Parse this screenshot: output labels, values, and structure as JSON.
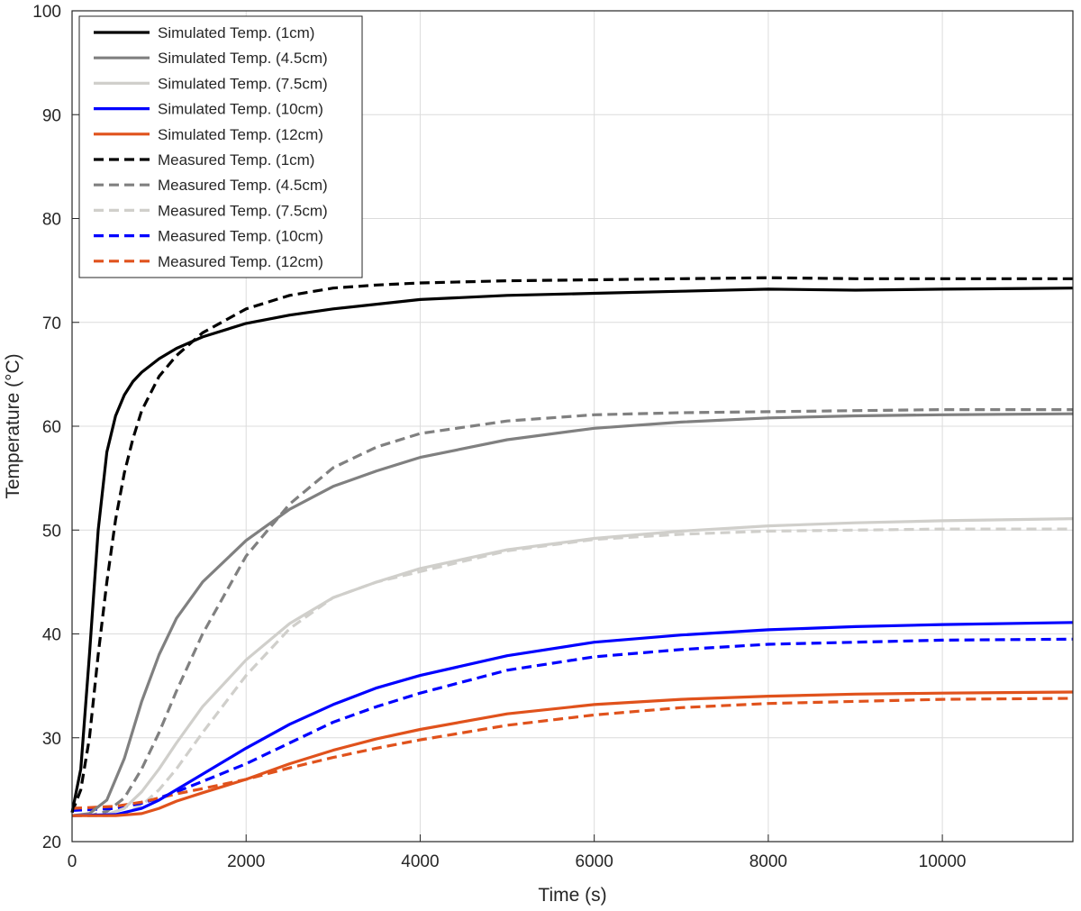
{
  "chart_data": {
    "type": "line",
    "xlabel": "Time (s)",
    "ylabel": "Temperature (°C)",
    "xlim": [
      0,
      11500
    ],
    "ylim": [
      20,
      100
    ],
    "xticks": [
      0,
      2000,
      4000,
      6000,
      8000,
      10000
    ],
    "yticks": [
      20,
      30,
      40,
      50,
      60,
      70,
      80,
      90,
      100
    ],
    "grid": true,
    "legend_position": "top-left",
    "series": [
      {
        "name": "Simulated Temp. (1cm)",
        "color": "#000000",
        "style": "solid",
        "x": [
          0,
          100,
          200,
          300,
          400,
          500,
          600,
          700,
          800,
          1000,
          1200,
          1500,
          2000,
          2500,
          3000,
          4000,
          5000,
          6000,
          7000,
          8000,
          9000,
          10000,
          11500
        ],
        "y": [
          22.8,
          27,
          38,
          50,
          57.5,
          61,
          63,
          64.3,
          65.2,
          66.5,
          67.5,
          68.6,
          69.9,
          70.7,
          71.3,
          72.2,
          72.6,
          72.8,
          73,
          73.2,
          73.1,
          73.2,
          73.3
        ]
      },
      {
        "name": "Simulated Temp. (4.5cm)",
        "color": "#808080",
        "style": "solid",
        "x": [
          0,
          200,
          400,
          600,
          800,
          1000,
          1200,
          1500,
          2000,
          2500,
          3000,
          3500,
          4000,
          5000,
          6000,
          7000,
          8000,
          9000,
          10000,
          11500
        ],
        "y": [
          22.5,
          22.7,
          24,
          28,
          33.5,
          38,
          41.5,
          45,
          49,
          52,
          54.2,
          55.7,
          57,
          58.7,
          59.8,
          60.4,
          60.8,
          61,
          61.1,
          61.2
        ]
      },
      {
        "name": "Simulated Temp. (7.5cm)",
        "color": "#d0cfcb",
        "style": "solid",
        "x": [
          0,
          400,
          600,
          800,
          1000,
          1200,
          1500,
          2000,
          2500,
          3000,
          3500,
          4000,
          5000,
          6000,
          7000,
          8000,
          9000,
          10000,
          11500
        ],
        "y": [
          22.5,
          22.6,
          23.2,
          24.8,
          27,
          29.5,
          33,
          37.5,
          41,
          43.5,
          45,
          46.3,
          48.1,
          49.2,
          49.9,
          50.4,
          50.7,
          50.9,
          51.1
        ]
      },
      {
        "name": "Simulated Temp. (10cm)",
        "color": "#0000ff",
        "style": "solid",
        "x": [
          0,
          500,
          800,
          1000,
          1200,
          1500,
          2000,
          2500,
          3000,
          3500,
          4000,
          5000,
          6000,
          7000,
          8000,
          9000,
          10000,
          11500
        ],
        "y": [
          22.5,
          22.6,
          23.2,
          24,
          25,
          26.5,
          29,
          31.3,
          33.2,
          34.8,
          36,
          37.9,
          39.2,
          39.9,
          40.4,
          40.7,
          40.9,
          41.1
        ]
      },
      {
        "name": "Simulated Temp. (12cm)",
        "color": "#e0521c",
        "style": "solid",
        "x": [
          0,
          500,
          800,
          1000,
          1200,
          1500,
          2000,
          2500,
          3000,
          3500,
          4000,
          5000,
          6000,
          7000,
          8000,
          9000,
          10000,
          11500
        ],
        "y": [
          22.5,
          22.5,
          22.7,
          23.2,
          23.9,
          24.7,
          26,
          27.5,
          28.8,
          29.9,
          30.8,
          32.3,
          33.2,
          33.7,
          34,
          34.2,
          34.3,
          34.4
        ]
      },
      {
        "name": "Measured Temp. (1cm)",
        "color": "#000000",
        "style": "dashed",
        "x": [
          0,
          100,
          200,
          300,
          400,
          500,
          600,
          700,
          800,
          1000,
          1200,
          1500,
          2000,
          2500,
          3000,
          3500,
          4000,
          5000,
          6000,
          7000,
          8000,
          9000,
          10000,
          11500
        ],
        "y": [
          22.8,
          25,
          30,
          38,
          45,
          51,
          55.5,
          58.8,
          61.5,
          64.8,
          66.8,
          69,
          71.3,
          72.6,
          73.3,
          73.6,
          73.8,
          74,
          74.1,
          74.2,
          74.3,
          74.2,
          74.2,
          74.2
        ]
      },
      {
        "name": "Measured Temp. (4.5cm)",
        "color": "#808080",
        "style": "dashed",
        "x": [
          0,
          200,
          400,
          600,
          800,
          1000,
          1200,
          1500,
          2000,
          2500,
          3000,
          3500,
          4000,
          5000,
          6000,
          7000,
          8000,
          9000,
          10000,
          11500
        ],
        "y": [
          22.5,
          22.5,
          22.9,
          24.2,
          27,
          30.5,
          34.5,
          40,
          47.5,
          52.5,
          56,
          58,
          59.3,
          60.5,
          61.1,
          61.3,
          61.4,
          61.5,
          61.6,
          61.6
        ]
      },
      {
        "name": "Measured Temp. (7.5cm)",
        "color": "#d0cfcb",
        "style": "dashed",
        "x": [
          0,
          400,
          600,
          800,
          1000,
          1200,
          1500,
          2000,
          2500,
          3000,
          3500,
          4000,
          5000,
          6000,
          7000,
          8000,
          9000,
          10000,
          11500
        ],
        "y": [
          22.5,
          22.5,
          22.7,
          23.5,
          25,
          27,
          30.5,
          36,
          40.5,
          43.5,
          45,
          46,
          48,
          49.1,
          49.6,
          49.9,
          50,
          50.1,
          50.1
        ]
      },
      {
        "name": "Measured Temp. (10cm)",
        "color": "#0000ff",
        "style": "dashed",
        "x": [
          0,
          500,
          800,
          1000,
          1200,
          1500,
          2000,
          2500,
          3000,
          3500,
          4000,
          5000,
          6000,
          7000,
          8000,
          9000,
          10000,
          11500
        ],
        "y": [
          23,
          23.2,
          23.7,
          24.2,
          24.8,
          25.8,
          27.5,
          29.5,
          31.5,
          33,
          34.3,
          36.5,
          37.8,
          38.5,
          39,
          39.2,
          39.4,
          39.5
        ]
      },
      {
        "name": "Measured Temp. (12cm)",
        "color": "#e0521c",
        "style": "dashed",
        "x": [
          0,
          500,
          800,
          1000,
          1200,
          1500,
          2000,
          2500,
          3000,
          3500,
          4000,
          5000,
          6000,
          7000,
          8000,
          9000,
          10000,
          11500
        ],
        "y": [
          23.2,
          23.4,
          23.8,
          24.2,
          24.6,
          25.1,
          26,
          27.1,
          28.1,
          29,
          29.8,
          31.2,
          32.2,
          32.9,
          33.3,
          33.5,
          33.7,
          33.8
        ]
      }
    ]
  }
}
